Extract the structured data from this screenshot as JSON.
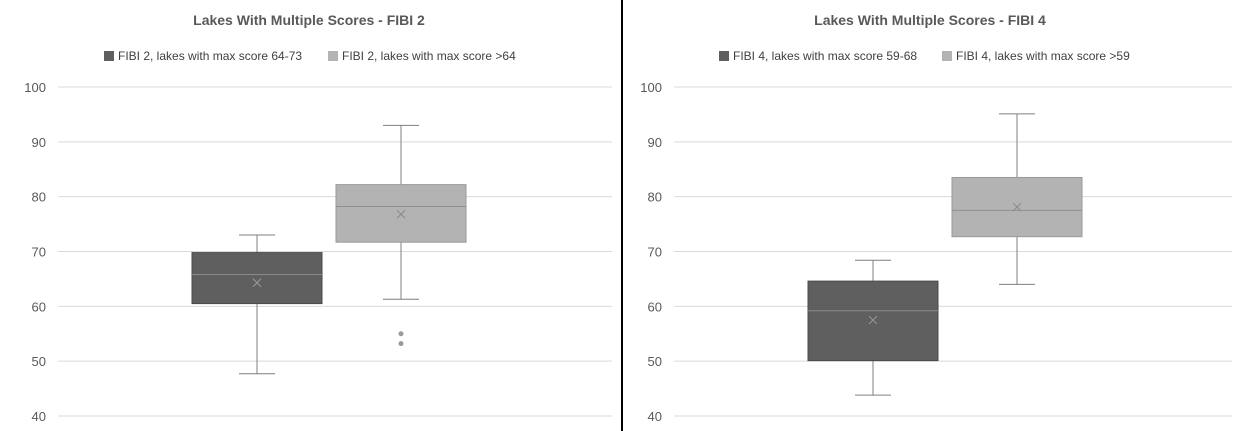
{
  "colors": {
    "dark_series": "#5f5f5f",
    "light_series": "#b3b3b3",
    "whisker": "#7f7f7f",
    "grid": "#d9d9d9",
    "panel_border": "#000000"
  },
  "chart_data": [
    {
      "type": "box",
      "title": "Lakes With Multiple Scores - FIBI 2",
      "legend_position": "top",
      "grid": true,
      "ylim": [
        40,
        100
      ],
      "yticks": [
        40,
        50,
        60,
        70,
        80,
        90,
        100
      ],
      "yticks_labels": [
        "40",
        "50",
        "60",
        "70",
        "80",
        "90",
        "100"
      ],
      "legend": [
        "FIBI 2, lakes with max score 64-73",
        "FIBI 2, lakes with max score >64"
      ],
      "series": [
        {
          "name": "FIBI 2, lakes with max score 64-73",
          "min": 47.7,
          "q1": 60.5,
          "median": 65.8,
          "q3": 69.8,
          "max": 73.0,
          "mean": 64.3,
          "outliers": []
        },
        {
          "name": "FIBI 2, lakes with max score >64",
          "min": 61.3,
          "q1": 71.7,
          "median": 78.2,
          "q3": 82.2,
          "max": 93.0,
          "mean": 76.8,
          "outliers": [
            55.0,
            53.2
          ]
        }
      ]
    },
    {
      "type": "box",
      "title": "Lakes With Multiple Scores - FIBI 4",
      "legend_position": "top",
      "grid": true,
      "ylim": [
        40,
        100
      ],
      "yticks": [
        40,
        50,
        60,
        70,
        80,
        90,
        100
      ],
      "yticks_labels": [
        "40",
        "50",
        "60",
        "70",
        "80",
        "90",
        "100"
      ],
      "legend": [
        "FIBI 4, lakes with max score 59-68",
        "FIBI 4, lakes with max score  >59"
      ],
      "series": [
        {
          "name": "FIBI 4, lakes with max score 59-68",
          "min": 43.8,
          "q1": 50.1,
          "median": 59.2,
          "q3": 64.6,
          "max": 68.4,
          "mean": 57.5,
          "outliers": []
        },
        {
          "name": "FIBI 4, lakes with max score  >59",
          "min": 64.0,
          "q1": 72.7,
          "median": 77.5,
          "q3": 83.5,
          "max": 95.1,
          "mean": 78.1,
          "outliers": []
        }
      ]
    }
  ]
}
